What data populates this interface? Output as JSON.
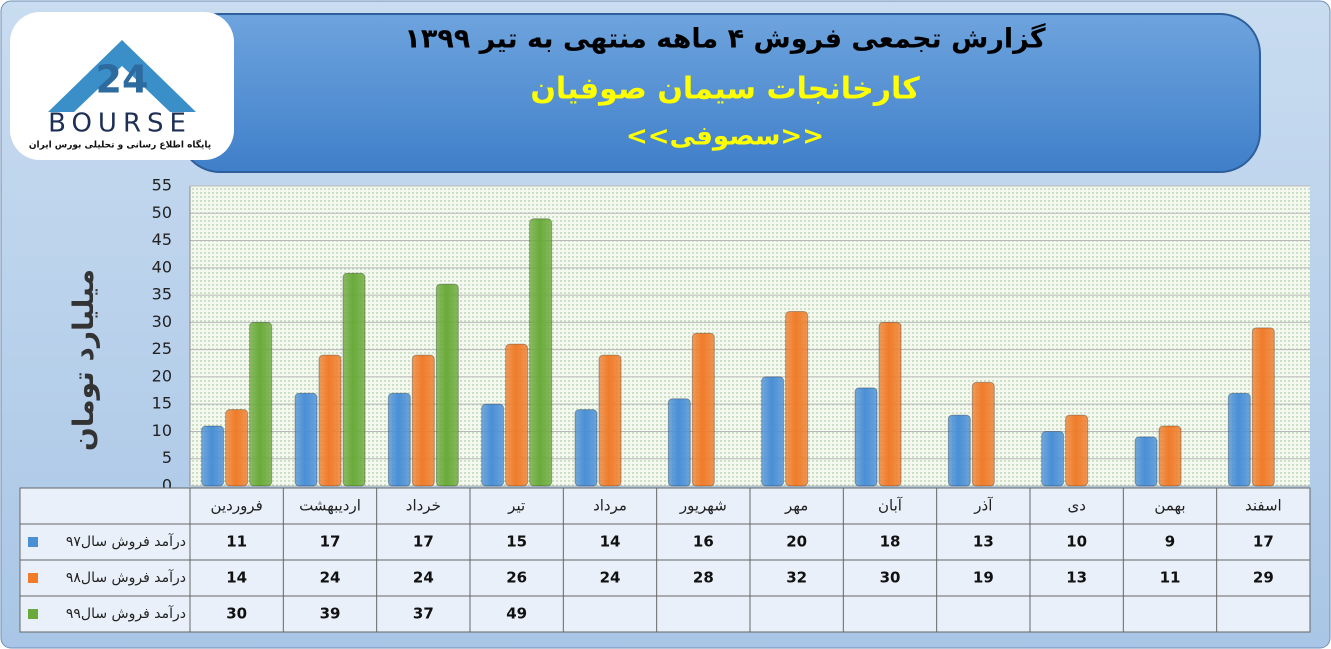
{
  "logo": {
    "name": "BOURSE",
    "tagline": "پایگاه اطلاع رسانی و تحلیلی بورس ایران"
  },
  "chart_data": {
    "type": "bar",
    "title": "گزارش تجمعی فروش  ۴ ماهه منتهی به تیر ۱۳۹۹",
    "subtitle": "کارخانجات سیمان صوفیان",
    "symbol": "<<سصوفی>>",
    "y_label": "میلیارد تومان",
    "categories": [
      "فروردین",
      "اردیبهشت",
      "خرداد",
      "تیر",
      "مرداد",
      "شهریور",
      "مهر",
      "آبان",
      "آذر",
      "دی",
      "بهمن",
      "اسفند"
    ],
    "series": [
      {
        "name": "درآمد فروش سال۹۷",
        "color": "#4a8fd6",
        "values": [
          11,
          17,
          17,
          15,
          14,
          16,
          20,
          18,
          13,
          10,
          9,
          17
        ]
      },
      {
        "name": "درآمد فروش سال۹۸",
        "color": "#f07c2a",
        "values": [
          14,
          24,
          24,
          26,
          24,
          28,
          32,
          30,
          19,
          13,
          11,
          29
        ]
      },
      {
        "name": "درآمد فروش سال۹۹",
        "color": "#6aaa3a",
        "values": [
          30,
          39,
          37,
          49,
          null,
          null,
          null,
          null,
          null,
          null,
          null,
          null
        ]
      }
    ],
    "ylim": [
      0,
      55
    ],
    "yticks": [
      0,
      5,
      10,
      15,
      20,
      25,
      30,
      35,
      40,
      45,
      50,
      55
    ],
    "grid": true
  }
}
